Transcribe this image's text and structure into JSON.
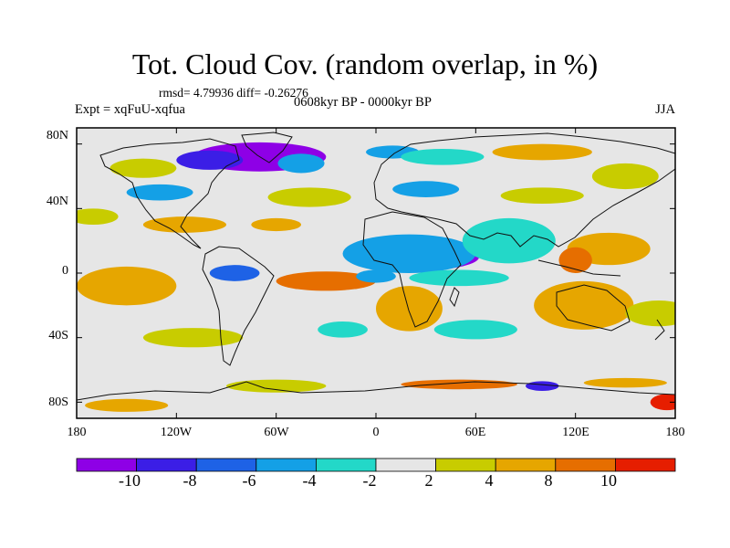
{
  "title": "Tot. Cloud Cov. (random overlap, in %)",
  "stats": "rmsd= 4.79936 diff= -0.26276",
  "period": "0608kyr BP - 0000kyr BP",
  "expt": "Expt = xqFuU-xqfua",
  "season": "JJA",
  "map": {
    "lat_labels": [
      "80N",
      "40N",
      "0",
      "40S",
      "80S"
    ],
    "lat_values": [
      80,
      40,
      0,
      -40,
      -80
    ],
    "lon_labels": [
      "180",
      "120W",
      "60W",
      "0",
      "60E",
      "120E",
      "180"
    ],
    "lon_values": [
      -180,
      -120,
      -60,
      0,
      60,
      120,
      180
    ],
    "extent": {
      "lon": [
        -180,
        180
      ],
      "lat": [
        -90,
        90
      ]
    },
    "background_color": "#e6e6e6"
  },
  "colorbar": {
    "colors": [
      "#8e00e6",
      "#3b1ee6",
      "#1e62e6",
      "#14a0e6",
      "#23d8c8",
      "#e6e6e6",
      "#c8cc00",
      "#e6a600",
      "#e66e00",
      "#e61e00"
    ],
    "labels": [
      "-10",
      "-8",
      "-6",
      "-4",
      "-2",
      "2",
      "4",
      "8",
      "10"
    ]
  },
  "anomaly_blobs": [
    {
      "lon": -70,
      "lat": 72,
      "rx": 40,
      "ry": 9,
      "level": 0
    },
    {
      "lon": -100,
      "lat": 70,
      "rx": 20,
      "ry": 6,
      "level": 1
    },
    {
      "lon": -45,
      "lat": 68,
      "rx": 14,
      "ry": 6,
      "level": 3
    },
    {
      "lon": 10,
      "lat": 75,
      "rx": 16,
      "ry": 4,
      "level": 3
    },
    {
      "lon": 40,
      "lat": 72,
      "rx": 25,
      "ry": 5,
      "level": 4
    },
    {
      "lon": 100,
      "lat": 75,
      "rx": 30,
      "ry": 5,
      "level": 7
    },
    {
      "lon": 150,
      "lat": 60,
      "rx": 20,
      "ry": 8,
      "level": 6
    },
    {
      "lon": -140,
      "lat": 65,
      "rx": 20,
      "ry": 6,
      "level": 6
    },
    {
      "lon": -130,
      "lat": 50,
      "rx": 20,
      "ry": 5,
      "level": 3
    },
    {
      "lon": -40,
      "lat": 47,
      "rx": 25,
      "ry": 6,
      "level": 6
    },
    {
      "lon": 30,
      "lat": 52,
      "rx": 20,
      "ry": 5,
      "level": 3
    },
    {
      "lon": 100,
      "lat": 48,
      "rx": 25,
      "ry": 5,
      "level": 6
    },
    {
      "lon": -170,
      "lat": 35,
      "rx": 15,
      "ry": 5,
      "level": 6
    },
    {
      "lon": -115,
      "lat": 30,
      "rx": 25,
      "ry": 5,
      "level": 7
    },
    {
      "lon": -60,
      "lat": 30,
      "rx": 15,
      "ry": 4,
      "level": 7
    },
    {
      "lon": 30,
      "lat": 10,
      "rx": 32,
      "ry": 8,
      "level": 0
    },
    {
      "lon": 20,
      "lat": 12,
      "rx": 40,
      "ry": 12,
      "level": 3
    },
    {
      "lon": 75,
      "lat": 20,
      "rx": 18,
      "ry": 10,
      "level": 1
    },
    {
      "lon": 80,
      "lat": 20,
      "rx": 28,
      "ry": 14,
      "level": 4
    },
    {
      "lon": 140,
      "lat": 15,
      "rx": 25,
      "ry": 10,
      "level": 7
    },
    {
      "lon": 120,
      "lat": 8,
      "rx": 10,
      "ry": 8,
      "level": 8
    },
    {
      "lon": 50,
      "lat": -3,
      "rx": 30,
      "ry": 5,
      "level": 4
    },
    {
      "lon": -150,
      "lat": -8,
      "rx": 22,
      "ry": 8,
      "level": 9
    },
    {
      "lon": -150,
      "lat": -8,
      "rx": 30,
      "ry": 12,
      "level": 7
    },
    {
      "lon": -85,
      "lat": 0,
      "rx": 15,
      "ry": 5,
      "level": 2
    },
    {
      "lon": -30,
      "lat": -5,
      "rx": 30,
      "ry": 6,
      "level": 8
    },
    {
      "lon": 20,
      "lat": -22,
      "rx": 12,
      "ry": 10,
      "level": 9
    },
    {
      "lon": 20,
      "lat": -22,
      "rx": 20,
      "ry": 14,
      "level": 7
    },
    {
      "lon": 0,
      "lat": -2,
      "rx": 12,
      "ry": 4,
      "level": 3
    },
    {
      "lon": 125,
      "lat": -20,
      "rx": 20,
      "ry": 10,
      "level": 9
    },
    {
      "lon": 125,
      "lat": -20,
      "rx": 30,
      "ry": 15,
      "level": 7
    },
    {
      "lon": 170,
      "lat": -25,
      "rx": 20,
      "ry": 8,
      "level": 6
    },
    {
      "lon": -110,
      "lat": -40,
      "rx": 30,
      "ry": 6,
      "level": 6
    },
    {
      "lon": 60,
      "lat": -35,
      "rx": 25,
      "ry": 6,
      "level": 4
    },
    {
      "lon": -20,
      "lat": -35,
      "rx": 15,
      "ry": 5,
      "level": 4
    },
    {
      "lon": -60,
      "lat": -70,
      "rx": 30,
      "ry": 4,
      "level": 6
    },
    {
      "lon": 50,
      "lat": -69,
      "rx": 35,
      "ry": 3,
      "level": 8
    },
    {
      "lon": 150,
      "lat": -68,
      "rx": 25,
      "ry": 3,
      "level": 7
    },
    {
      "lon": 100,
      "lat": -70,
      "rx": 10,
      "ry": 3,
      "level": 1
    },
    {
      "lon": -150,
      "lat": -82,
      "rx": 25,
      "ry": 4,
      "level": 7
    },
    {
      "lon": 175,
      "lat": -80,
      "rx": 10,
      "ry": 5,
      "level": 9
    }
  ]
}
